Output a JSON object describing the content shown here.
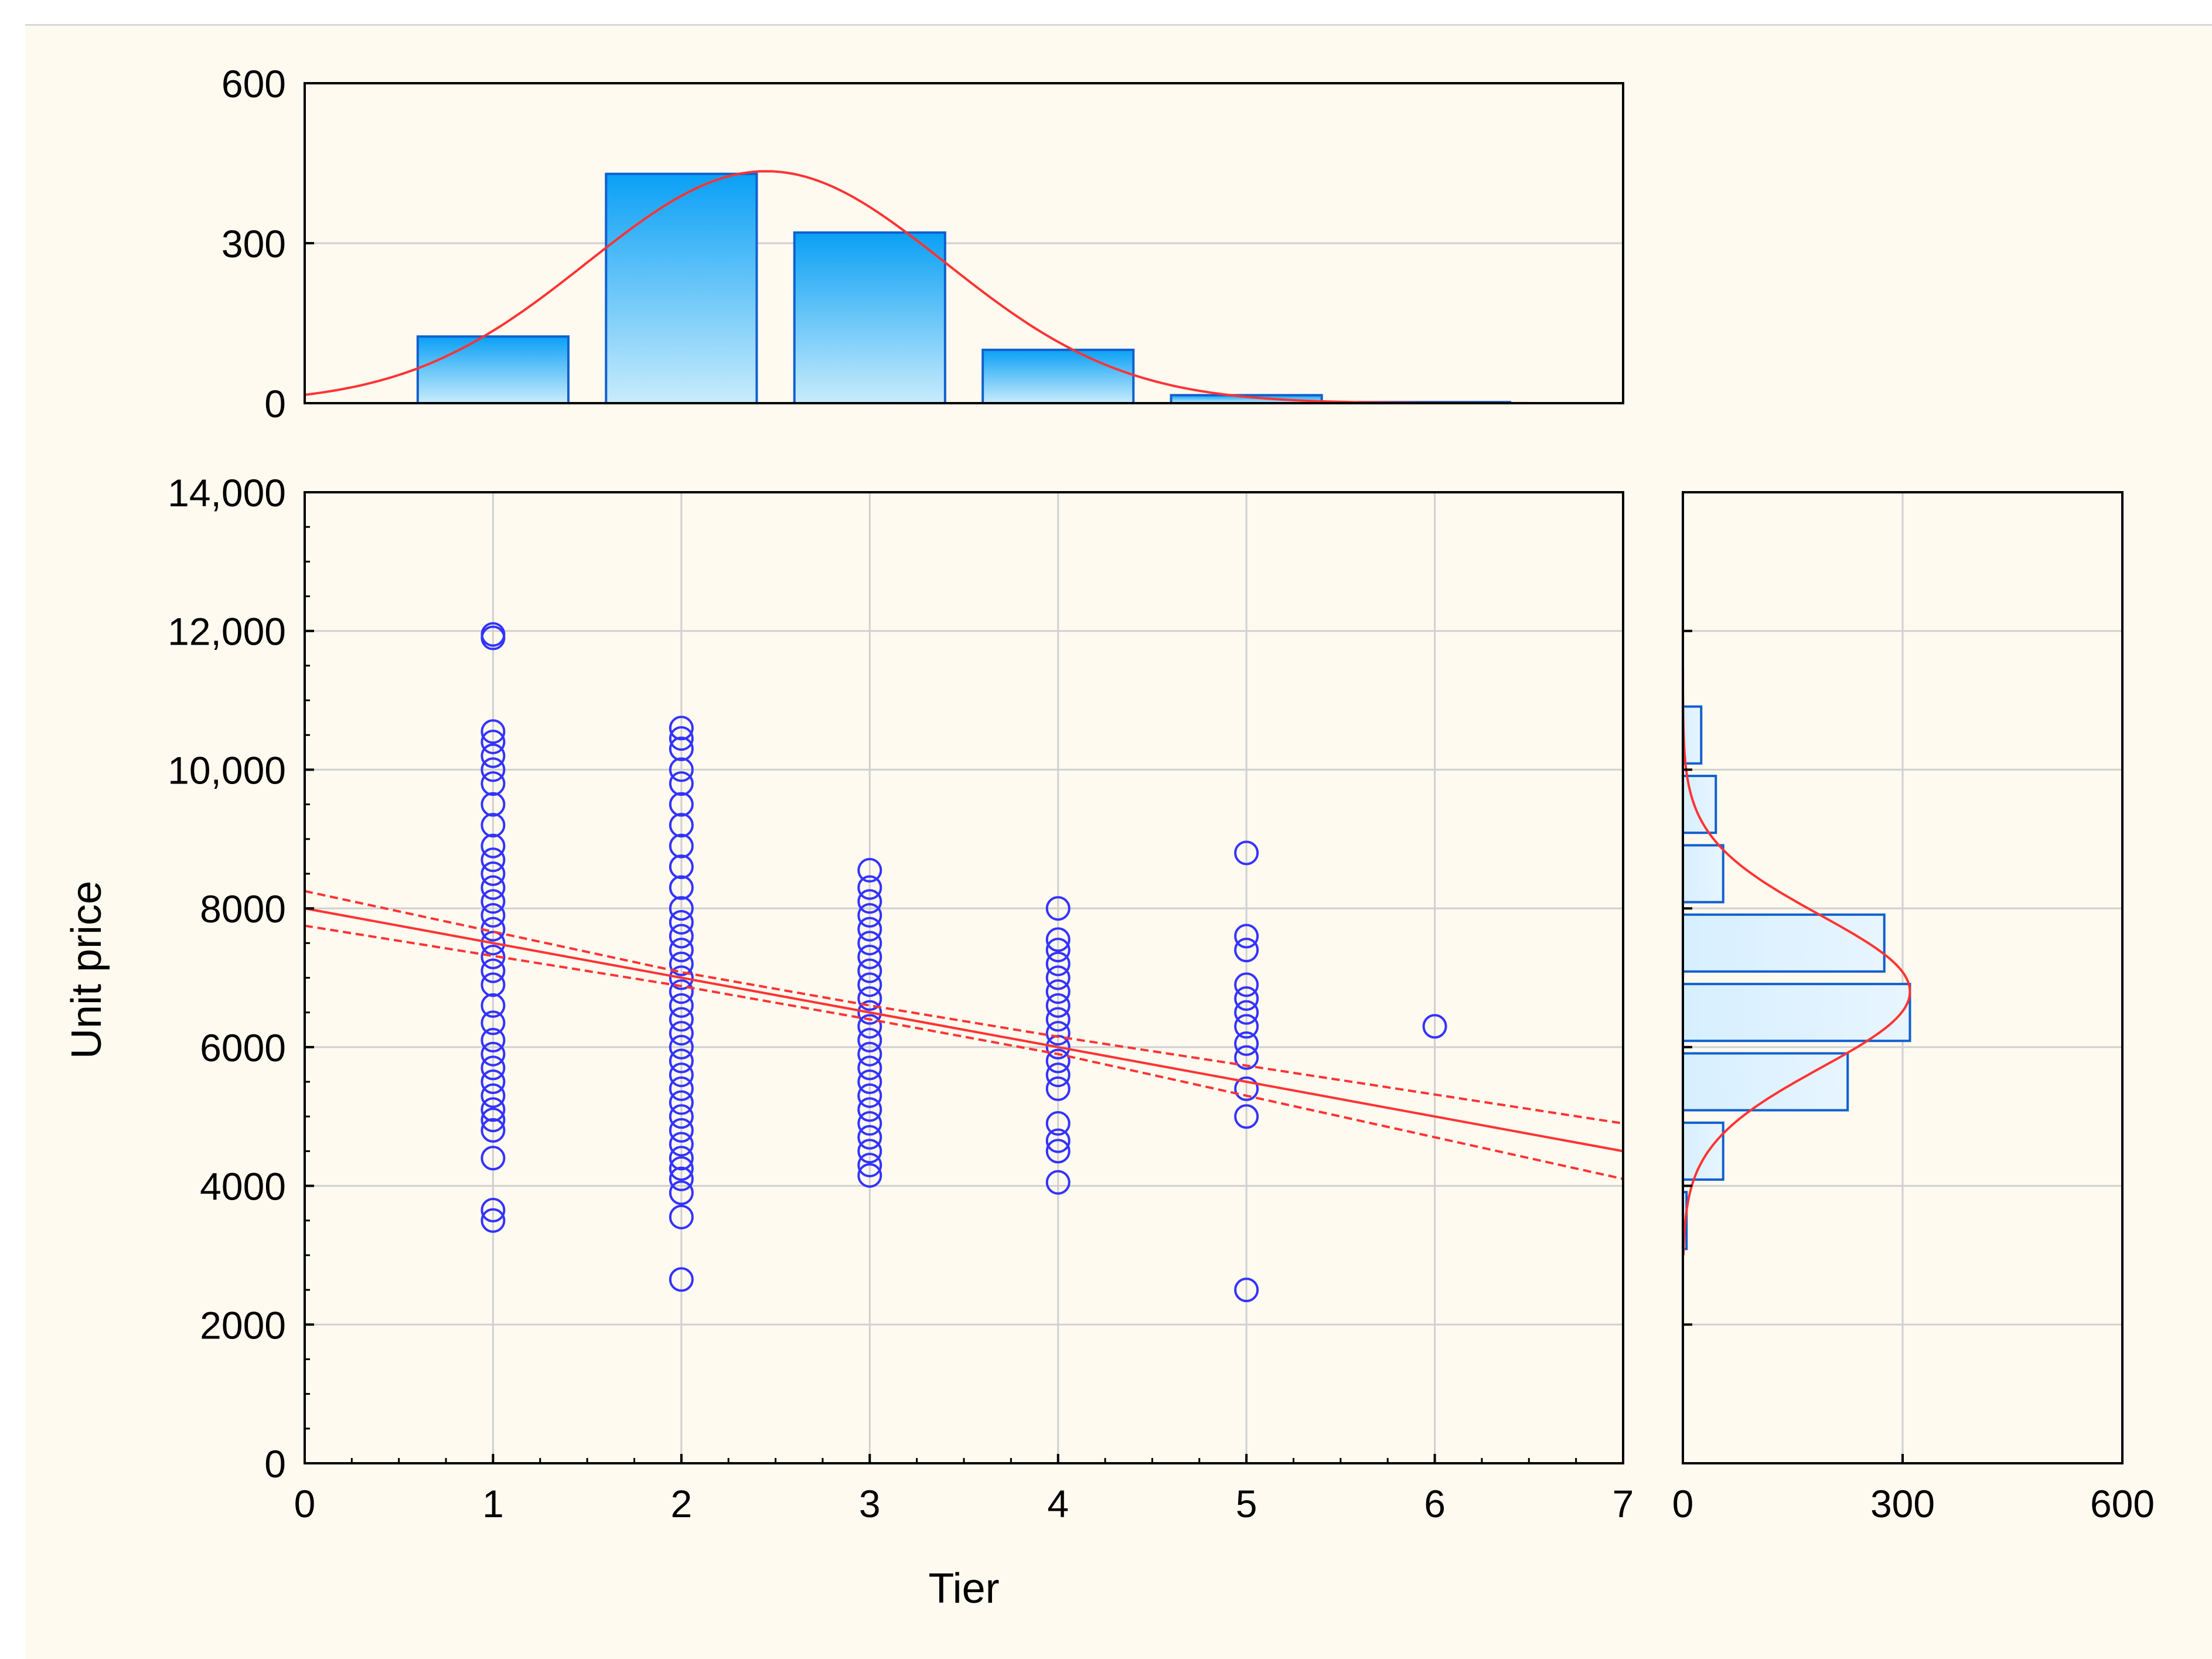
{
  "colors": {
    "background": "#fefaf0",
    "point": "#3333ff",
    "fit": "#ff3333",
    "bar_stroke": "#1060d0",
    "grid": "#d0d0d0"
  },
  "chart_data": {
    "type": "scatter",
    "xlabel": "Tier",
    "ylabel": "Unit price",
    "grid": true,
    "scatter": {
      "xlim": [
        0,
        7
      ],
      "ylim": [
        0,
        14000
      ],
      "x_ticks": [
        "0",
        "1",
        "2",
        "3",
        "4",
        "5",
        "6",
        "7"
      ],
      "y_ticks": [
        "0",
        "2000",
        "4000",
        "6000",
        "8000",
        "10,000",
        "12,000",
        "14,000"
      ],
      "groups": [
        {
          "x": 1,
          "y": [
            3500,
            3650,
            4400,
            4800,
            4950,
            5100,
            5300,
            5500,
            5700,
            5900,
            6100,
            6350,
            6600,
            6900,
            7100,
            7300,
            7500,
            7700,
            7900,
            8100,
            8300,
            8500,
            8700,
            8900,
            9200,
            9500,
            9800,
            10000,
            10200,
            10400,
            10550,
            11900,
            11950
          ]
        },
        {
          "x": 2,
          "y": [
            2650,
            3550,
            3900,
            4100,
            4250,
            4400,
            4600,
            4800,
            5000,
            5200,
            5400,
            5600,
            5800,
            6000,
            6200,
            6400,
            6600,
            6800,
            7000,
            7200,
            7400,
            7600,
            7800,
            8000,
            8300,
            8600,
            8900,
            9200,
            9500,
            9800,
            10000,
            10300,
            10450,
            10600
          ]
        },
        {
          "x": 3,
          "y": [
            4150,
            4300,
            4500,
            4700,
            4900,
            5100,
            5300,
            5500,
            5700,
            5900,
            6100,
            6300,
            6500,
            6700,
            6900,
            7100,
            7300,
            7500,
            7700,
            7900,
            8100,
            8300,
            8550
          ]
        },
        {
          "x": 4,
          "y": [
            4050,
            4500,
            4650,
            4900,
            5400,
            5600,
            5800,
            6000,
            6200,
            6400,
            6600,
            6800,
            7000,
            7200,
            7400,
            7550,
            8000
          ]
        },
        {
          "x": 5,
          "y": [
            2500,
            5000,
            5400,
            5850,
            6050,
            6300,
            6500,
            6700,
            6900,
            7400,
            7600,
            8800
          ]
        },
        {
          "x": 6,
          "y": [
            6300
          ]
        }
      ],
      "fit_line": {
        "x": [
          0,
          7
        ],
        "y": [
          8000,
          4500
        ]
      },
      "confidence_upper": {
        "x": [
          0,
          2,
          3,
          4,
          7
        ],
        "y": [
          8250,
          7080,
          6600,
          6150,
          4900
        ]
      },
      "confidence_lower": {
        "x": [
          0,
          2,
          3,
          4,
          7
        ],
        "y": [
          7750,
          6880,
          6400,
          5900,
          4100
        ]
      }
    },
    "top_histogram": {
      "type": "bar",
      "xlim": [
        0,
        7
      ],
      "ylim": [
        0,
        600
      ],
      "y_ticks": [
        "0",
        "300",
        "600"
      ],
      "bin_centers": [
        1,
        2,
        3,
        4,
        5,
        6
      ],
      "counts": [
        125,
        430,
        320,
        100,
        15,
        2
      ],
      "normal_curve": {
        "mean": 2.45,
        "sd": 0.95,
        "peak": 435
      }
    },
    "right_histogram": {
      "type": "bar",
      "orientation": "horizontal",
      "xlim": [
        0,
        600
      ],
      "x_ticks": [
        "0",
        "300",
        "600"
      ],
      "bin_ranges": [
        [
          4000,
          5000
        ],
        [
          5000,
          6000
        ],
        [
          6000,
          7000
        ],
        [
          7000,
          8000
        ],
        [
          8000,
          9000
        ],
        [
          9000,
          10000
        ],
        [
          10000,
          11000
        ],
        [
          3000,
          4000
        ]
      ],
      "counts": [
        55,
        225,
        310,
        275,
        55,
        45,
        25,
        5
      ],
      "normal_curve": {
        "mean": 6800,
        "sd": 1100,
        "peak": 310
      }
    }
  }
}
